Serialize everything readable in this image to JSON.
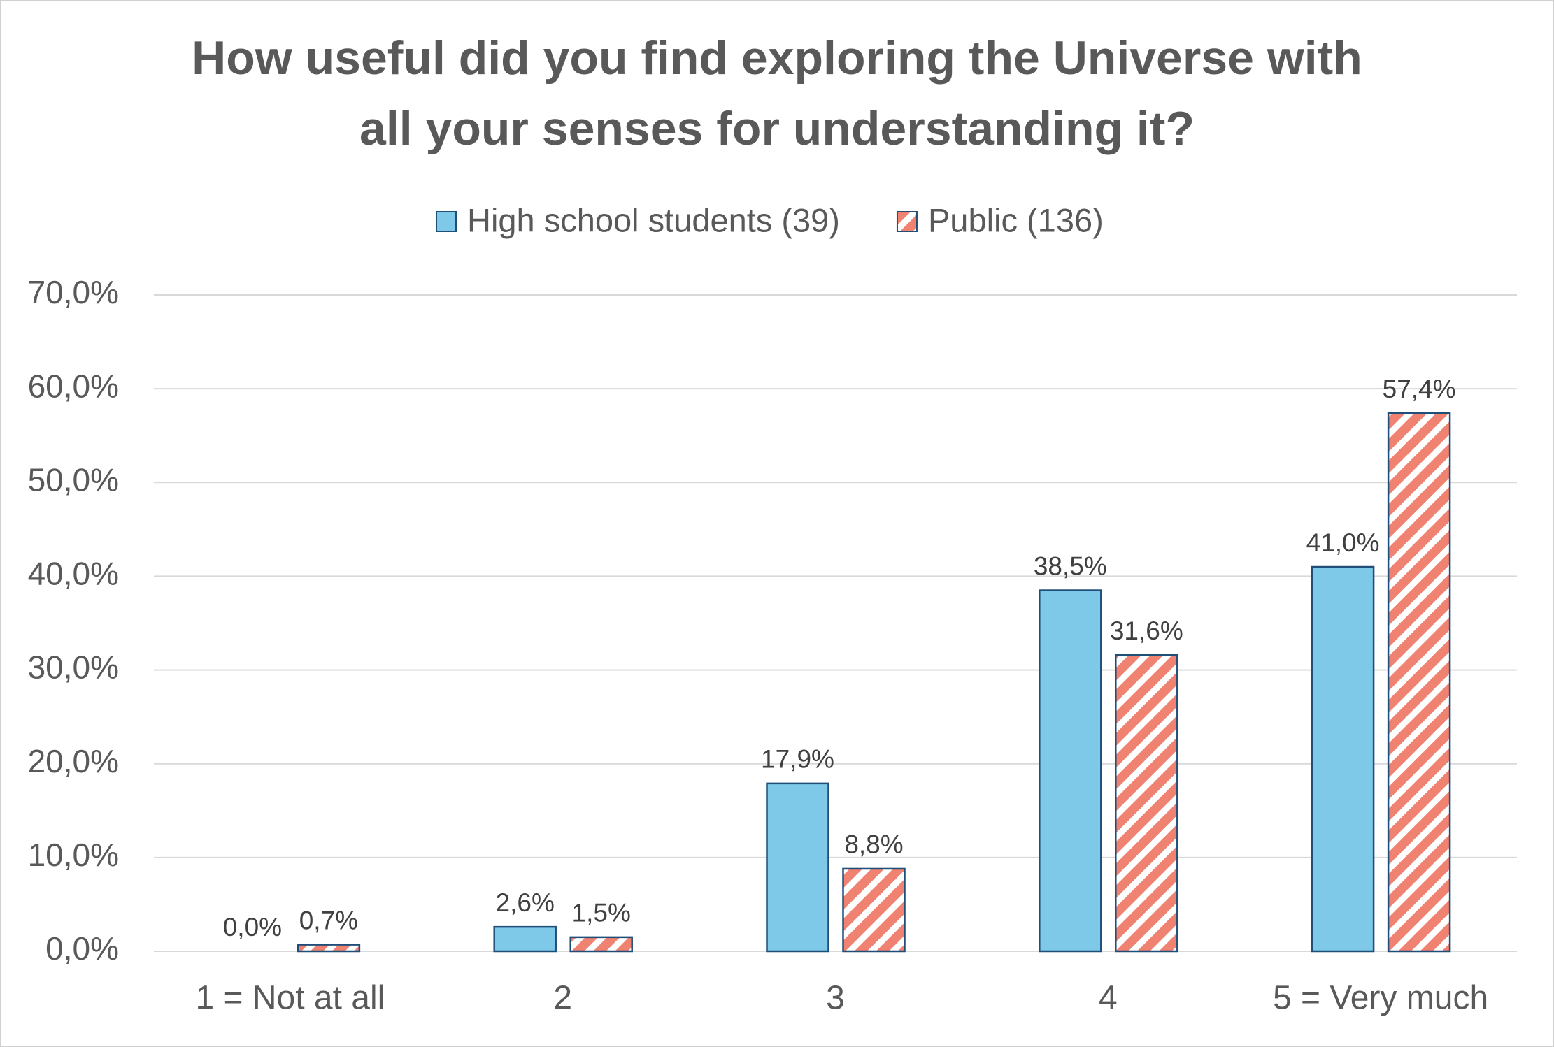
{
  "chart_data": {
    "type": "bar",
    "title": [
      "How useful did you find exploring the Universe with",
      "all your senses for understanding it?"
    ],
    "categories": [
      "1 = Not at all",
      "2",
      "3",
      "4",
      "5 = Very much"
    ],
    "series": [
      {
        "name": "High school students (39)",
        "color": "#7ec8e8",
        "hatch": false,
        "values": [
          0.0,
          2.6,
          17.9,
          38.5,
          41.0
        ],
        "value_labels": [
          "0,0%",
          "2,6%",
          "17,9%",
          "38,5%",
          "41,0%"
        ]
      },
      {
        "name": "Public (136)",
        "color": "#f08272",
        "hatch": true,
        "values": [
          0.7,
          1.5,
          8.8,
          31.6,
          57.4
        ],
        "value_labels": [
          "0,7%",
          "1,5%",
          "8,8%",
          "31,6%",
          "57,4%"
        ]
      }
    ],
    "ylim": [
      0,
      70
    ],
    "yticks": [
      {
        "value": 0,
        "label": "0,0%"
      },
      {
        "value": 10,
        "label": "10,0%"
      },
      {
        "value": 20,
        "label": "20,0%"
      },
      {
        "value": 30,
        "label": "30,0%"
      },
      {
        "value": 40,
        "label": "40,0%"
      },
      {
        "value": 50,
        "label": "50,0%"
      },
      {
        "value": 60,
        "label": "60,0%"
      },
      {
        "value": 70,
        "label": "70,0%"
      }
    ],
    "grid": true,
    "legend": "top"
  }
}
